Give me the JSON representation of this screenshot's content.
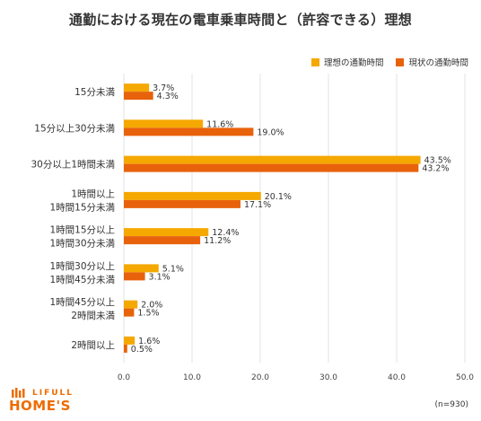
{
  "chart_data": {
    "type": "bar",
    "orientation": "horizontal",
    "title": "通勤における現在の電車乗車時間と（許容できる）理想",
    "categories": [
      [
        "15分未満"
      ],
      [
        "15分以上30分未満"
      ],
      [
        "30分以上1時間未満"
      ],
      [
        "1時間以上",
        "1時間15分未満"
      ],
      [
        "1時間15分以上",
        "1時間30分未満"
      ],
      [
        "1時間30分以上",
        "1時間45分未満"
      ],
      [
        "1時間45分以上",
        "2時間未満"
      ],
      [
        "2時間以上"
      ]
    ],
    "series": [
      {
        "name": "理想の通勤時間",
        "color": "#f5a800",
        "values": [
          3.7,
          11.6,
          43.5,
          20.1,
          12.4,
          5.1,
          2.0,
          1.6
        ],
        "labels": [
          "3.7%",
          "11.6%",
          "43.5%",
          "20.1%",
          "12.4%",
          "5.1%",
          "2.0%",
          "1.6%"
        ]
      },
      {
        "name": "現状の通勤時間",
        "color": "#e8620c",
        "values": [
          4.3,
          19.0,
          43.2,
          17.1,
          11.2,
          3.1,
          1.5,
          0.5
        ],
        "labels": [
          "4.3%",
          "19.0%",
          "43.2%",
          "17.1%",
          "11.2%",
          "3.1%",
          "1.5%",
          "0.5%"
        ]
      }
    ],
    "xlim": [
      0,
      50
    ],
    "xticks": [
      "0.0",
      "10.0",
      "20.0",
      "30.0",
      "40.0",
      "50.0"
    ],
    "grid": true,
    "legend_position": "top-right"
  },
  "branding": {
    "logo_small": "LIFULL",
    "logo_main": "HOME'S"
  },
  "note": "(n=930)"
}
